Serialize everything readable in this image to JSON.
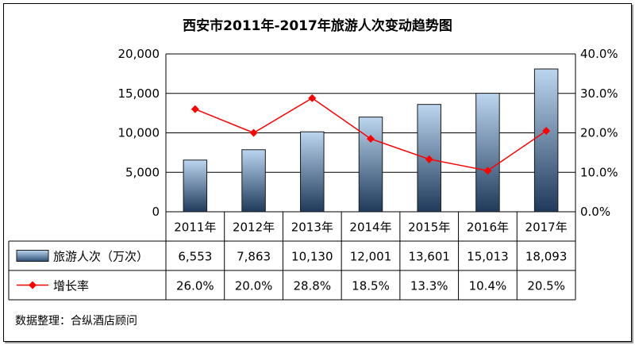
{
  "chart_data": {
    "type": "bar",
    "title": "西安市2011年-2017年旅游人次变动趋势图",
    "categories": [
      "2011年",
      "2012年",
      "2013年",
      "2014年",
      "2015年",
      "2016年",
      "2017年"
    ],
    "series": [
      {
        "name": "旅游人次（万次）",
        "type": "bar",
        "axis": "left",
        "values": [
          6553,
          7863,
          10130,
          12001,
          13601,
          15013,
          18093
        ],
        "labels": [
          "6,553",
          "7,863",
          "10,130",
          "12,001",
          "13,601",
          "15,013",
          "18,093"
        ]
      },
      {
        "name": "增长率",
        "type": "line",
        "axis": "right",
        "values": [
          26.0,
          20.0,
          28.8,
          18.5,
          13.3,
          10.4,
          20.5
        ],
        "labels": [
          "26.0%",
          "20.0%",
          "28.8%",
          "18.5%",
          "13.3%",
          "10.4%",
          "20.5%"
        ]
      }
    ],
    "y_left": {
      "ylim": [
        0,
        20000
      ],
      "ticks": [
        "0",
        "5,000",
        "10,000",
        "15,000",
        "20,000"
      ]
    },
    "y_right": {
      "ylim": [
        0,
        40
      ],
      "ticks": [
        "0.0%",
        "10.0%",
        "20.0%",
        "30.0%",
        "40.0%"
      ]
    },
    "grid": true,
    "legend": "data-table-left",
    "colors": {
      "bar_top": "#bcd6f0",
      "bar_bottom": "#1f3a5a",
      "line": "#ff0000"
    }
  },
  "source": "数据整理：合纵酒店顾问"
}
